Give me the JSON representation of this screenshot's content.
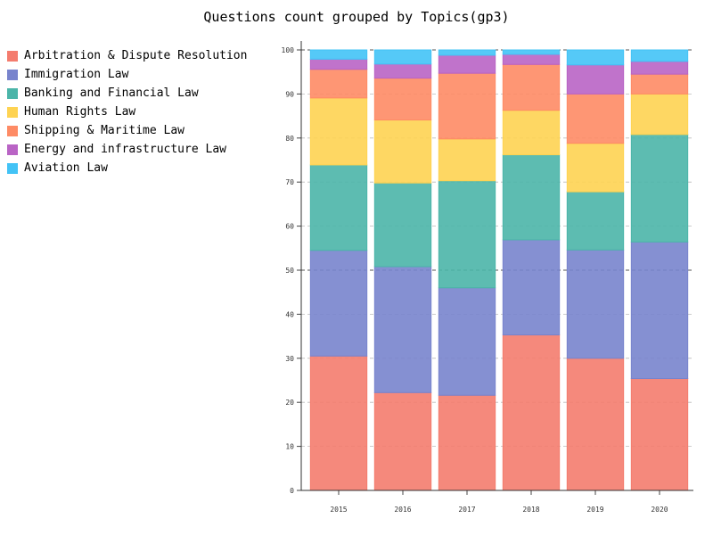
{
  "chart_data": {
    "type": "bar",
    "stacked": true,
    "title": "Questions count grouped by Topics(gp3)",
    "xlabel": "",
    "ylabel": "",
    "ylim": [
      0,
      100
    ],
    "yticks": [
      0,
      10,
      20,
      30,
      40,
      50,
      60,
      70,
      80,
      90,
      100
    ],
    "grid": "horizontal dashed",
    "legend_position": "left",
    "categories": [
      "2015",
      "2016",
      "2017",
      "2018",
      "2019",
      "2020"
    ],
    "series": [
      {
        "name": "Arbitration & Dispute Resolution",
        "color": "#f47c6e",
        "values": [
          30.5,
          22.2,
          21.6,
          35.3,
          30.0,
          25.4
        ]
      },
      {
        "name": "Immigration Law",
        "color": "#7884cd",
        "values": [
          24.0,
          28.6,
          24.4,
          21.6,
          24.6,
          31.0
        ]
      },
      {
        "name": "Banking and Financial Law",
        "color": "#4bb5a9",
        "values": [
          19.4,
          19.0,
          24.3,
          19.3,
          13.2,
          24.4
        ]
      },
      {
        "name": "Human Rights Law",
        "color": "#fed352",
        "values": [
          15.2,
          14.3,
          9.5,
          10.1,
          11.0,
          9.2
        ]
      },
      {
        "name": "Shipping & Maritime Law",
        "color": "#fe8b65",
        "values": [
          6.5,
          9.5,
          14.9,
          10.4,
          11.2,
          4.5
        ]
      },
      {
        "name": "Energy and infrastructure Law",
        "color": "#b964c5",
        "values": [
          2.3,
          3.2,
          4.1,
          2.3,
          6.6,
          2.9
        ]
      },
      {
        "name": "Aviation Law",
        "color": "#43c3f6",
        "values": [
          2.1,
          3.2,
          1.2,
          1.0,
          3.4,
          2.6
        ]
      }
    ]
  }
}
